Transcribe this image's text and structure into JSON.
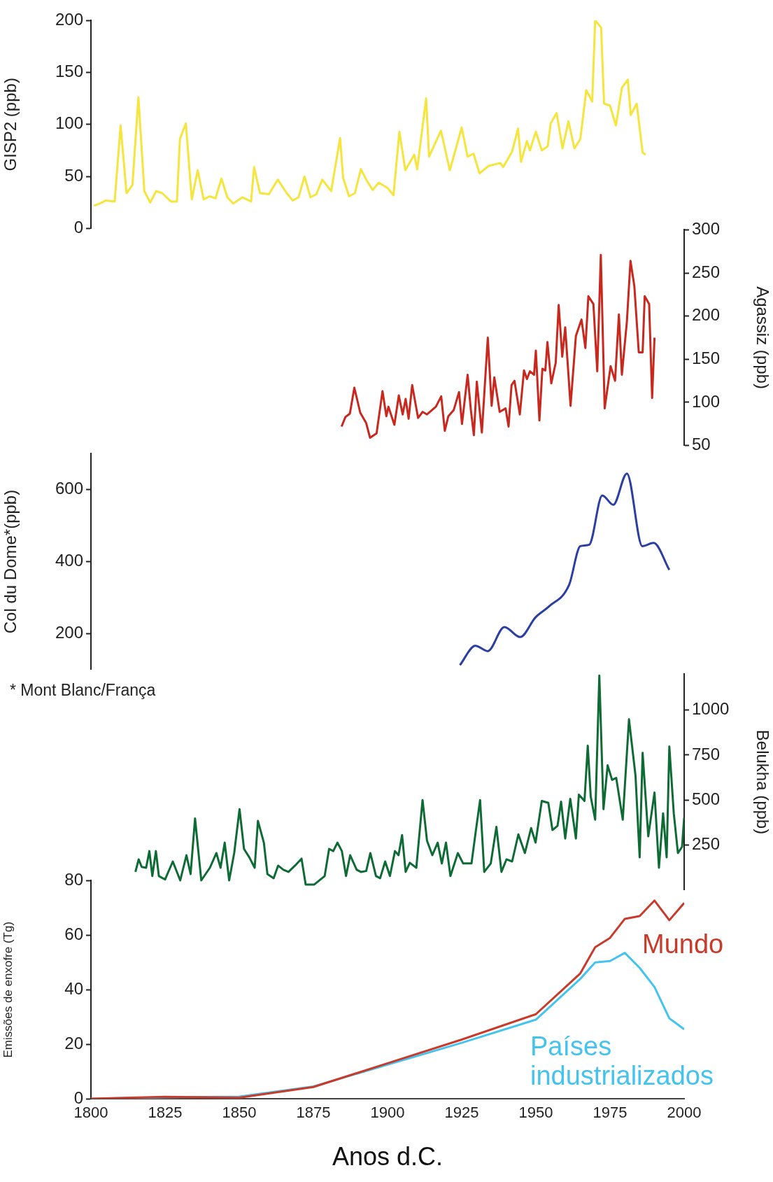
{
  "chart_data": [
    {
      "type": "line",
      "ylabel": "GISP2 (ppb)",
      "xlim": [
        1800,
        2000
      ],
      "ylim": [
        0,
        200
      ],
      "yticks": [
        0,
        50,
        100,
        150,
        200
      ],
      "tick_labels": "y",
      "grid": false,
      "legend": false,
      "marker": "none",
      "color": "#f5e53c",
      "x": [
        1801,
        1803,
        1805,
        1808,
        1810,
        1812,
        1814,
        1816,
        1818,
        1820,
        1822,
        1824,
        1827,
        1829,
        1830,
        1832,
        1834,
        1836,
        1838,
        1840,
        1842,
        1844,
        1846,
        1848,
        1851,
        1854,
        1855,
        1857,
        1860,
        1863,
        1866,
        1868,
        1870,
        1872,
        1874,
        1876,
        1878,
        1881,
        1884,
        1885,
        1887,
        1889,
        1891,
        1893,
        1895,
        1897,
        1900,
        1902,
        1904,
        1906,
        1909,
        1910,
        1913,
        1914,
        1918,
        1921,
        1925,
        1927,
        1929,
        1931,
        1934,
        1938,
        1939,
        1942,
        1944,
        1945,
        1947,
        1948,
        1950,
        1952,
        1954,
        1955,
        1957,
        1959,
        1961,
        1963,
        1965,
        1967,
        1969,
        1970,
        1972,
        1973,
        1975,
        1977,
        1979,
        1981,
        1982,
        1984,
        1986,
        1987
      ],
      "values": [
        22,
        24,
        27,
        26,
        99,
        34,
        42,
        126,
        36,
        25,
        36,
        34,
        26,
        26,
        86,
        101,
        28,
        56,
        28,
        31,
        29,
        48,
        30,
        24,
        30,
        26,
        59,
        34,
        33,
        47,
        34,
        27,
        30,
        50,
        30,
        33,
        47,
        36,
        87,
        49,
        31,
        34,
        57,
        46,
        37,
        44,
        39,
        32,
        93,
        56,
        71,
        57,
        125,
        69,
        94,
        56,
        97,
        69,
        72,
        53,
        60,
        63,
        59,
        74,
        96,
        64,
        84,
        75,
        93,
        75,
        79,
        101,
        111,
        77,
        103,
        77,
        86,
        133,
        122,
        200,
        193,
        120,
        118,
        99,
        135,
        143,
        109,
        120,
        73,
        71
      ]
    },
    {
      "type": "line",
      "ylabel": "Agassiz (ppb)",
      "xlim": [
        1800,
        2000
      ],
      "ylim": [
        50,
        300
      ],
      "yticks": [
        50,
        100,
        150,
        200,
        250,
        300
      ],
      "tick_labels": "y",
      "grid": false,
      "legend": false,
      "marker": "none",
      "color": "#c8281e",
      "x": [
        1884.5,
        1885.8,
        1887.3,
        1888.8,
        1890.8,
        1892.8,
        1894.1,
        1896.3,
        1898.3,
        1899.6,
        1900.3,
        1902.3,
        1903.8,
        1905.1,
        1906.1,
        1907.1,
        1908.3,
        1910.3,
        1911.8,
        1913.3,
        1916.3,
        1918.1,
        1919.3,
        1920.5,
        1922.3,
        1924.1,
        1925.1,
        1927,
        1928.1,
        1929.1,
        1930.1,
        1931.8,
        1933.8,
        1935.1,
        1936,
        1937.8,
        1939.8,
        1940.8,
        1941.8,
        1942.8,
        1944.6,
        1946,
        1947,
        1948,
        1949.4,
        1950,
        1951.2,
        1952.2,
        1953.2,
        1953.9,
        1955.2,
        1956.7,
        1957.7,
        1958.9,
        1959.9,
        1961.7,
        1963.5,
        1965.4,
        1966.7,
        1967.7,
        1969.4,
        1970.7,
        1971.9,
        1973.2,
        1975.2,
        1976.7,
        1978,
        1979,
        1980.7,
        1981.9,
        1983.2,
        1984.7,
        1986,
        1986.7,
        1988.2,
        1989.2,
        1990
      ],
      "values": [
        72,
        83,
        87,
        117,
        88,
        76,
        59,
        64,
        113,
        84,
        95,
        74,
        108,
        86,
        104,
        81,
        120,
        82,
        89,
        86,
        95,
        107,
        67,
        84,
        91,
        112,
        75,
        132,
        91,
        62,
        124,
        65,
        175,
        96,
        129,
        89,
        93,
        72,
        120,
        125,
        86,
        137,
        127,
        136,
        132,
        160,
        79,
        139,
        137,
        170,
        122,
        146,
        213,
        153,
        187,
        96,
        177,
        196,
        163,
        223,
        214,
        136,
        271,
        93,
        142,
        125,
        202,
        132,
        194,
        264,
        235,
        158,
        158,
        223,
        214,
        105,
        175
      ]
    },
    {
      "type": "line",
      "ylabel": "Col du Dome*(ppb)",
      "annotations": [
        "* Mont Blanc/França"
      ],
      "xlim": [
        1800,
        2000
      ],
      "ylim": [
        100,
        700
      ],
      "yticks": [
        200,
        400,
        600
      ],
      "tick_labels": "y",
      "grid": false,
      "legend": false,
      "marker": "none",
      "color": "#2b3fa3",
      "x": [
        1924.4,
        1929.6,
        1933.8,
        1939.4,
        1944.7,
        1949.9,
        1954.4,
        1961.2,
        1965,
        1968,
        1972.4,
        1976.1,
        1980.7,
        1985.9,
        1989.7,
        1995
      ],
      "values": [
        112,
        166,
        151,
        218,
        190,
        245,
        275,
        335,
        443,
        447,
        584,
        558,
        645,
        443,
        452,
        377
      ]
    },
    {
      "type": "line",
      "ylabel": "Belukha (ppb)",
      "xlim": [
        1800,
        2000
      ],
      "ylim": [
        0,
        1200
      ],
      "yticks": [
        250,
        500,
        750,
        1000
      ],
      "tick_labels": "y",
      "grid": false,
      "legend": false,
      "marker": "none",
      "color": "#0f6b35",
      "x": [
        1815,
        1816.1,
        1817.1,
        1818.6,
        1819.7,
        1820.7,
        1821.9,
        1822.9,
        1825,
        1827.6,
        1830.1,
        1832.2,
        1833.6,
        1835.1,
        1837.2,
        1840.1,
        1842.3,
        1843.7,
        1845.1,
        1846.6,
        1848.3,
        1850.1,
        1851.6,
        1853.4,
        1855.2,
        1856.3,
        1858.3,
        1859.5,
        1861.6,
        1863.1,
        1864.9,
        1866.6,
        1868.8,
        1871,
        1872.4,
        1875.3,
        1878.8,
        1880.3,
        1881.7,
        1883.1,
        1884.6,
        1886,
        1887.4,
        1889.6,
        1891,
        1892.8,
        1894.2,
        1896.1,
        1897.5,
        1899.2,
        1900.8,
        1902.5,
        1903.7,
        1904.9,
        1906.1,
        1907.5,
        1909.7,
        1911.8,
        1913.3,
        1915.1,
        1916.9,
        1918.3,
        1919.7,
        1921.2,
        1923.7,
        1925.5,
        1926.9,
        1928.3,
        1929.8,
        1931.2,
        1932.6,
        1934.8,
        1936.7,
        1938.4,
        1940.1,
        1942,
        1944.1,
        1946.3,
        1948.4,
        1949.9,
        1952,
        1954.2,
        1955.6,
        1957.3,
        1958.5,
        1959.9,
        1961.6,
        1963.5,
        1964.5,
        1966.4,
        1967.5,
        1968.5,
        1970,
        1971.4,
        1972.8,
        1974.2,
        1975.7,
        1977.1,
        1979.3,
        1981.4,
        1983.6,
        1985,
        1986,
        1987.9,
        1990,
        1991.5,
        1992.9,
        1994.1,
        1995,
        1996.5,
        1997.9,
        1999.3,
        2000
      ],
      "values": [
        100,
        170,
        128,
        123,
        216,
        77,
        216,
        77,
        58,
        158,
        53,
        193,
        88,
        398,
        53,
        123,
        205,
        123,
        263,
        53,
        205,
        449,
        228,
        181,
        123,
        384,
        263,
        88,
        65,
        135,
        112,
        100,
        135,
        174,
        30,
        30,
        77,
        228,
        216,
        263,
        216,
        77,
        193,
        112,
        100,
        105,
        205,
        77,
        65,
        158,
        77,
        216,
        193,
        305,
        100,
        151,
        123,
        500,
        274,
        193,
        263,
        147,
        263,
        77,
        205,
        147,
        147,
        147,
        333,
        500,
        100,
        147,
        351,
        100,
        170,
        158,
        309,
        205,
        344,
        263,
        495,
        484,
        333,
        356,
        491,
        286,
        507,
        286,
        530,
        495,
        802,
        519,
        391,
        1193,
        449,
        693,
        612,
        623,
        391,
        949,
        635,
        181,
        763,
        298,
        542,
        123,
        426,
        181,
        798,
        426,
        205,
        240,
        402
      ]
    },
    {
      "type": "line",
      "ylabel": "Emissões de enxofre (Tg)",
      "xlabel": "Anos d.C.",
      "xlim": [
        1800,
        2000
      ],
      "xticks": [
        1800,
        1825,
        1850,
        1875,
        1900,
        1925,
        1950,
        1975,
        2000
      ],
      "ylim": [
        0,
        80
      ],
      "yticks": [
        0,
        20,
        40,
        60,
        80
      ],
      "grid": false,
      "legend": false,
      "marker": "none",
      "x": [
        1800,
        1825,
        1850,
        1875,
        1900,
        1925,
        1950,
        1960,
        1965,
        1970,
        1975,
        1980,
        1985,
        1990,
        1995,
        2000
      ],
      "series": [
        {
          "name": "Mundo",
          "color": "#c83a2a",
          "values": [
            0,
            0.7,
            0.4,
            4.3,
            13,
            21.7,
            31,
            41,
            46,
            55.6,
            59,
            66,
            67,
            72.7,
            65.5,
            71.8
          ]
        },
        {
          "name": "Países industrializados",
          "color": "#45c3ef",
          "values": [
            0,
            0.5,
            0.8,
            4.5,
            12.5,
            20.5,
            29,
            39,
            44,
            50,
            50.5,
            53.5,
            48,
            41,
            29.5,
            25.5
          ]
        }
      ]
    }
  ]
}
